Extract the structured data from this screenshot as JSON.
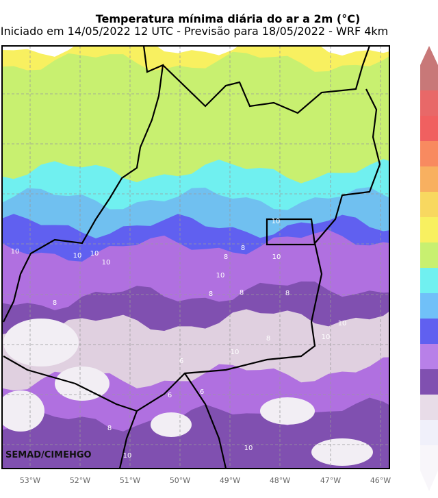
{
  "header": {
    "title": "Temperatura mínima diária do ar a 2m (°C)",
    "subtitle": "Iniciado em 14/05/2022 12 UTC - Previsão para 18/05/2022 - WRF 4km"
  },
  "map": {
    "credit": "SEMAD/CIMEHGO",
    "longitude_labels": [
      "53°W",
      "52°W",
      "51°W",
      "50°W",
      "49°W",
      "48°W",
      "47°W",
      "46°W"
    ],
    "contour_labels": [
      "10",
      "10",
      "10",
      "10",
      "10",
      "10",
      "10",
      "8",
      "8",
      "8",
      "10",
      "10",
      "8",
      "8",
      "6",
      "6",
      "8",
      "10",
      "8",
      "6",
      "10",
      "10",
      "8"
    ]
  }
}
